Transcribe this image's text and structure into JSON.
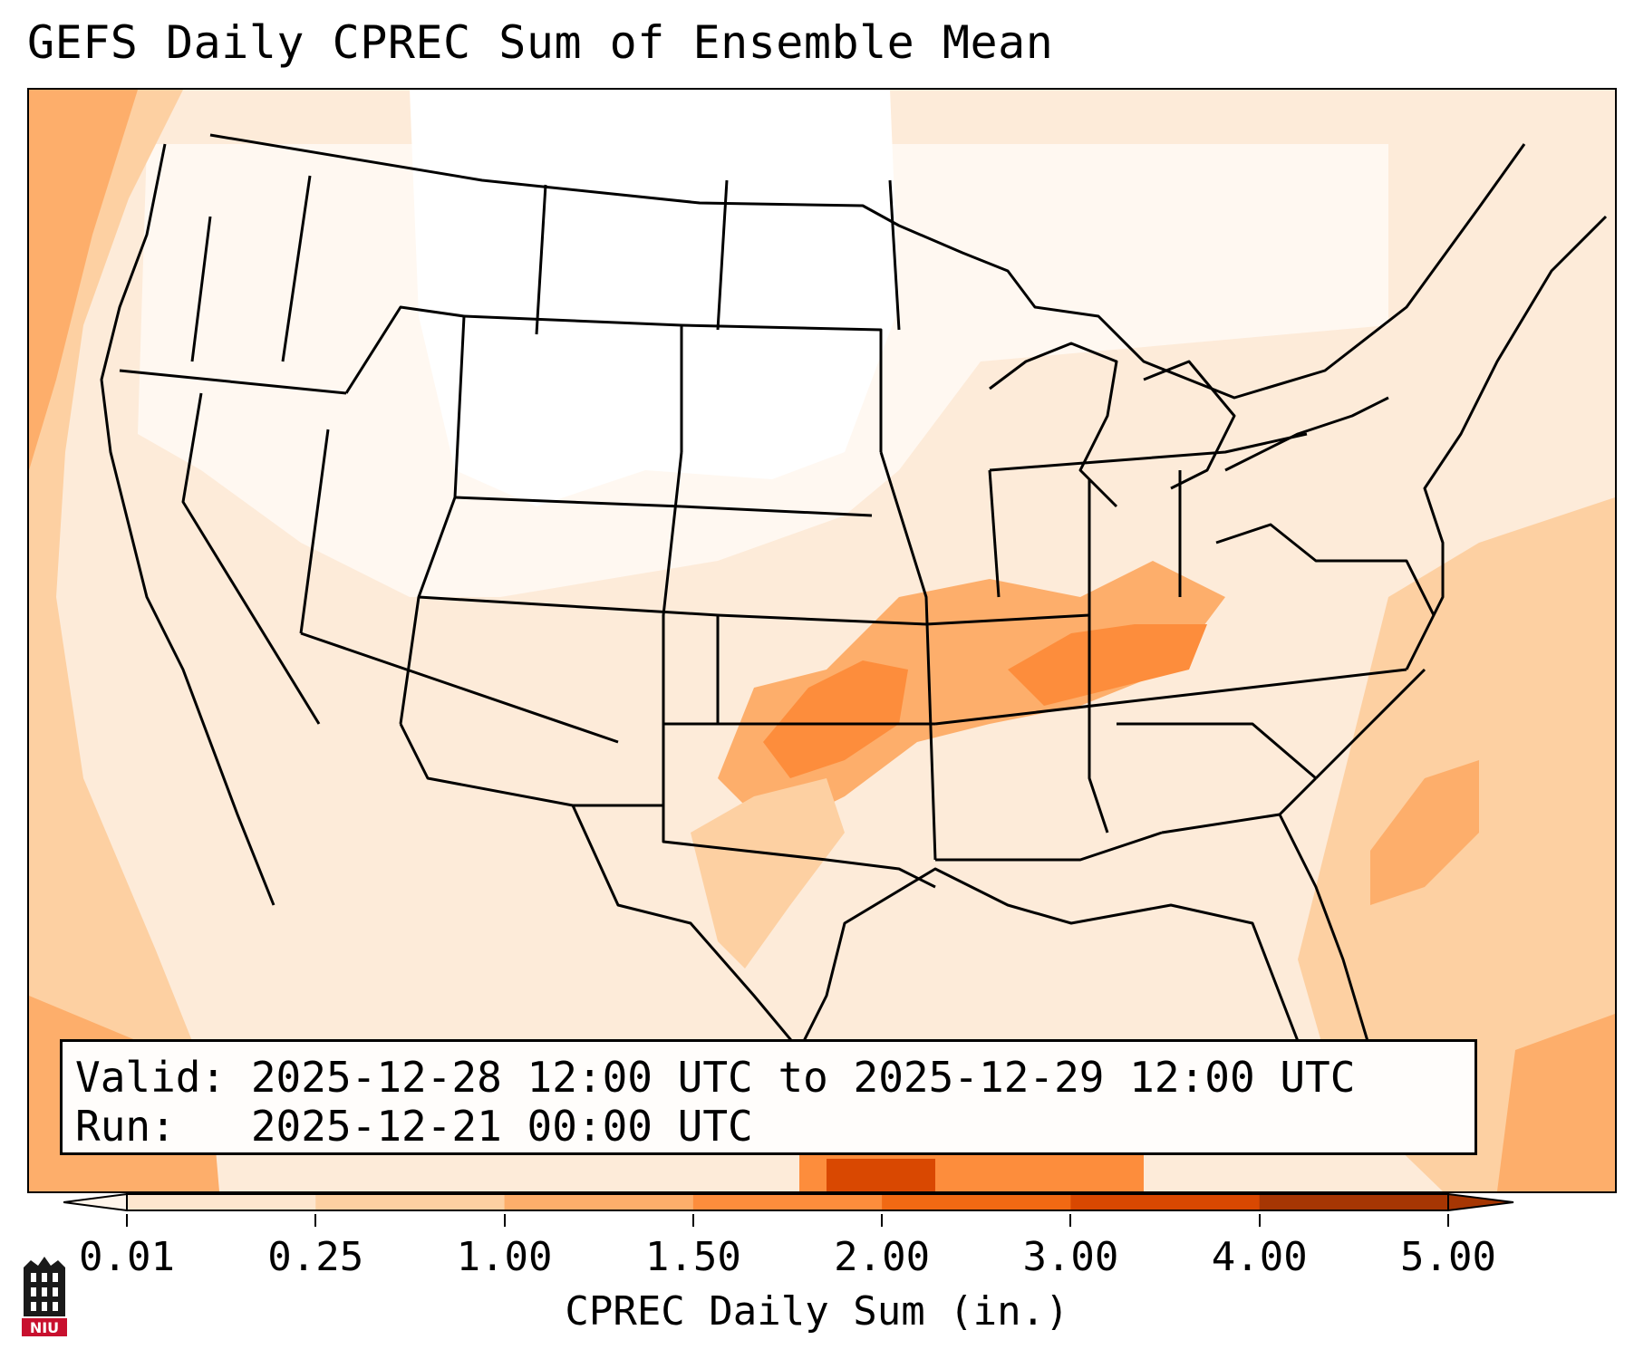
{
  "title": "GEFS Daily CPREC Sum of Ensemble Mean",
  "info": {
    "valid_line": "Valid: 2025-12-28 12:00 UTC to 2025-12-29 12:00 UTC",
    "run_line": "Run:   2025-12-21 00:00 UTC"
  },
  "colorbar": {
    "label": "CPREC Daily Sum (in.)",
    "ticks": [
      "0.01",
      "0.25",
      "1.00",
      "1.50",
      "2.00",
      "3.00",
      "4.00",
      "5.00"
    ],
    "colors": [
      "#fff5eb",
      "#fee6ce",
      "#fdd0a2",
      "#fdae6b",
      "#fd8d3c",
      "#f16913",
      "#d94801",
      "#a63603"
    ],
    "extend": "both"
  },
  "logo": {
    "text": "NIU",
    "icon": "university-tower-logo",
    "colors": {
      "tower": "#1a1a1a",
      "badge": "#c8102e"
    }
  },
  "map": {
    "region": "Continental United States",
    "basemap": "state boundaries, coastlines",
    "field": "GEFS ensemble mean daily convective precipitation"
  }
}
